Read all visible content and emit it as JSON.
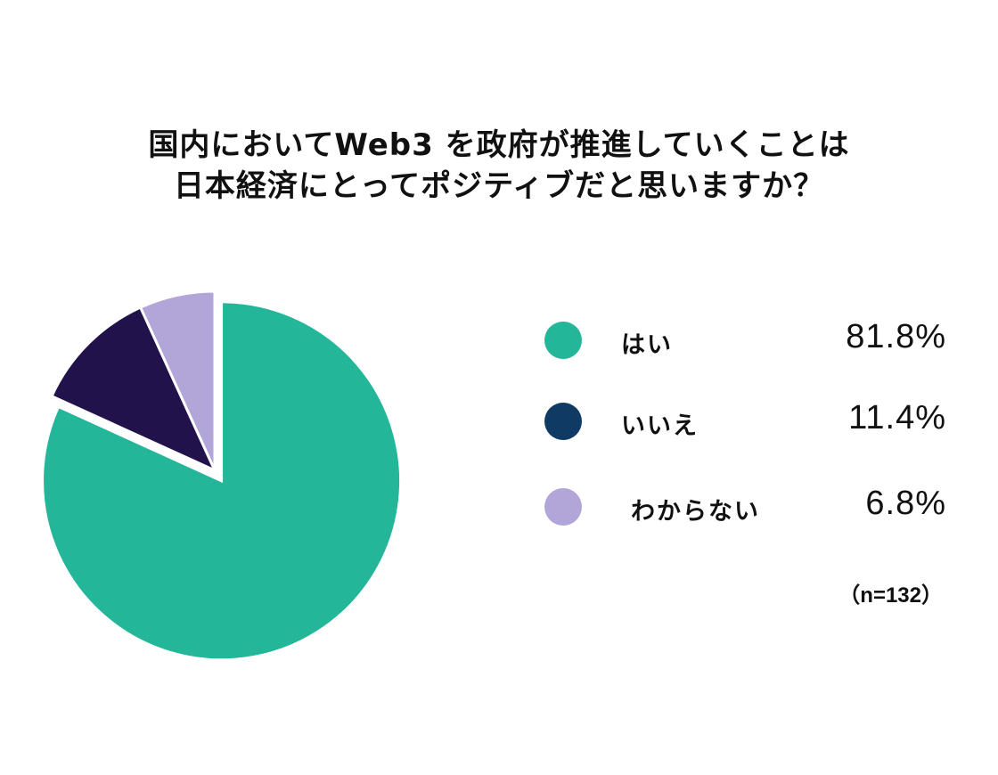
{
  "title_lines": [
    "国内においてWeb3 を政府が推進していくことは",
    "日本経済にとってポジティブだと思いますか？"
  ],
  "chart_data": {
    "type": "pie",
    "title": "国内においてWeb3 を政府が推進していくことは日本経済にとってポジティブだと思いますか？",
    "categories": [
      "はい",
      "いいえ",
      "わからない"
    ],
    "values": [
      81.8,
      11.4,
      6.8
    ],
    "value_labels": [
      "81.8%",
      "11.4%",
      "6.8%"
    ],
    "colors": [
      "#23b699",
      "#22124c",
      "#b2a5d8"
    ],
    "legend_colors": [
      "#23b699",
      "#0f3a63",
      "#b2a5d8"
    ],
    "legend_position": "right",
    "note": "（n=132）"
  }
}
